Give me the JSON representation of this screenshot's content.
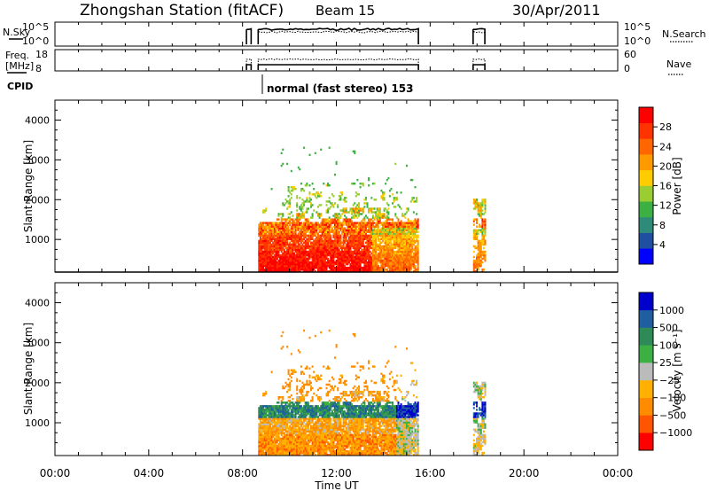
{
  "header": {
    "station": "Zhongshan Station (fitACF)",
    "beam": "Beam 15",
    "date": "30/Apr/2011"
  },
  "strip_panels": {
    "nsky_label": "N.Sky",
    "nsky_ticks": [
      "10^5",
      "10^0"
    ],
    "nsearch_ticks": [
      "10^5",
      "10^0"
    ],
    "nsearch_label": "N.Search",
    "freq_label_1": "Freq.",
    "freq_label_2": "[MHz]",
    "freq_ticks": [
      "18",
      "8"
    ],
    "nave_ticks": [
      "60",
      "0"
    ],
    "nave_label": "Nave",
    "cpid_label": "CPID",
    "cpid_text": "normal (fast stereo) 153"
  },
  "colors": {
    "power": [
      "#0000ff",
      "#1f4fa0",
      "#2e8b7a",
      "#3cb043",
      "#9acd32",
      "#ffcc00",
      "#ff9900",
      "#ff6600",
      "#ff3300",
      "#ff0000"
    ],
    "velocity": [
      "#ff0000",
      "#ff5500",
      "#ff8c00",
      "#ffb000",
      "#bbbbbb",
      "#3cb043",
      "#2e8b57",
      "#1f5fa0",
      "#0000cc"
    ]
  },
  "chart_data": [
    {
      "type": "heatmap",
      "ylabel": "Slant Range [km]",
      "xlabel": "",
      "ylim": [
        180,
        4500
      ],
      "yticks": [
        "4000",
        "3000",
        "2000",
        "1000"
      ],
      "xlim_hours": [
        0,
        24
      ],
      "colorbar_label": "Power [dB]",
      "colorbar_ticks": [
        "28",
        "24",
        "20",
        "16",
        "12",
        "8",
        "4"
      ],
      "clim": [
        0,
        32
      ],
      "data_windows_ut": [
        [
          "08:40",
          "15:30"
        ],
        [
          "17:50",
          "18:20"
        ]
      ]
    },
    {
      "type": "heatmap",
      "ylabel": "Slant Range [km]",
      "xlabel": "Time UT",
      "ylim": [
        180,
        4500
      ],
      "yticks": [
        "4000",
        "3000",
        "2000",
        "1000"
      ],
      "xticks": [
        "00:00",
        "04:00",
        "08:00",
        "12:00",
        "16:00",
        "20:00",
        "00:00"
      ],
      "xlim_hours": [
        0,
        24
      ],
      "colorbar_label": "Velocity [m s⁻¹]",
      "colorbar_ticks": [
        "1000",
        "500",
        "100",
        "25",
        "−25",
        "−100",
        "−500",
        "−1000"
      ],
      "data_windows_ut": [
        [
          "08:40",
          "15:30"
        ],
        [
          "17:50",
          "18:20"
        ]
      ]
    }
  ]
}
